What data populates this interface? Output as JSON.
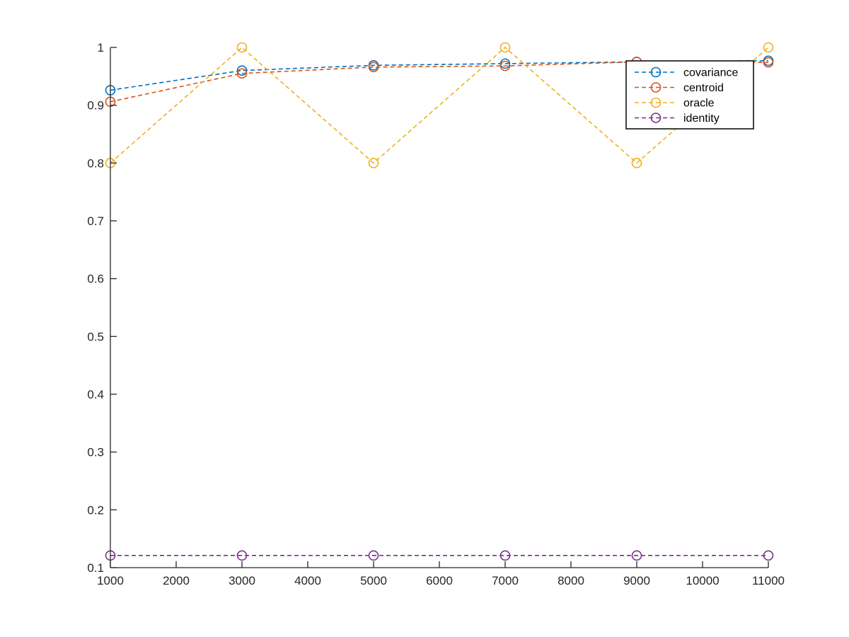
{
  "chart_data": {
    "type": "line",
    "title": "",
    "xlabel": "",
    "ylabel": "",
    "xlim": [
      1000,
      11000
    ],
    "ylim": [
      0.1,
      1.0
    ],
    "xticks": [
      "1000",
      "2000",
      "3000",
      "4000",
      "5000",
      "6000",
      "7000",
      "8000",
      "9000",
      "10000",
      "11000"
    ],
    "yticks": [
      "0.1",
      "0.2",
      "0.3",
      "0.4",
      "0.5",
      "0.6",
      "0.7",
      "0.8",
      "0.9",
      "1"
    ],
    "x": [
      1000,
      3000,
      5000,
      7000,
      9000,
      11000
    ],
    "grid": false,
    "legend_position": "top-right",
    "line_style": "dashed",
    "marker": "circle",
    "series": [
      {
        "name": "covariance",
        "color": "#0072BD",
        "values": [
          0.926,
          0.96,
          0.969,
          0.972,
          0.975,
          0.977
        ]
      },
      {
        "name": "centroid",
        "color": "#D95319",
        "values": [
          0.906,
          0.955,
          0.966,
          0.968,
          0.975,
          0.974
        ]
      },
      {
        "name": "oracle",
        "color": "#EDB120",
        "values": [
          0.8,
          1.0,
          0.8,
          1.0,
          0.8,
          1.0
        ]
      },
      {
        "name": "identity",
        "color": "#7E2F8E",
        "values": [
          0.121,
          0.121,
          0.121,
          0.121,
          0.121,
          0.121
        ]
      }
    ]
  }
}
